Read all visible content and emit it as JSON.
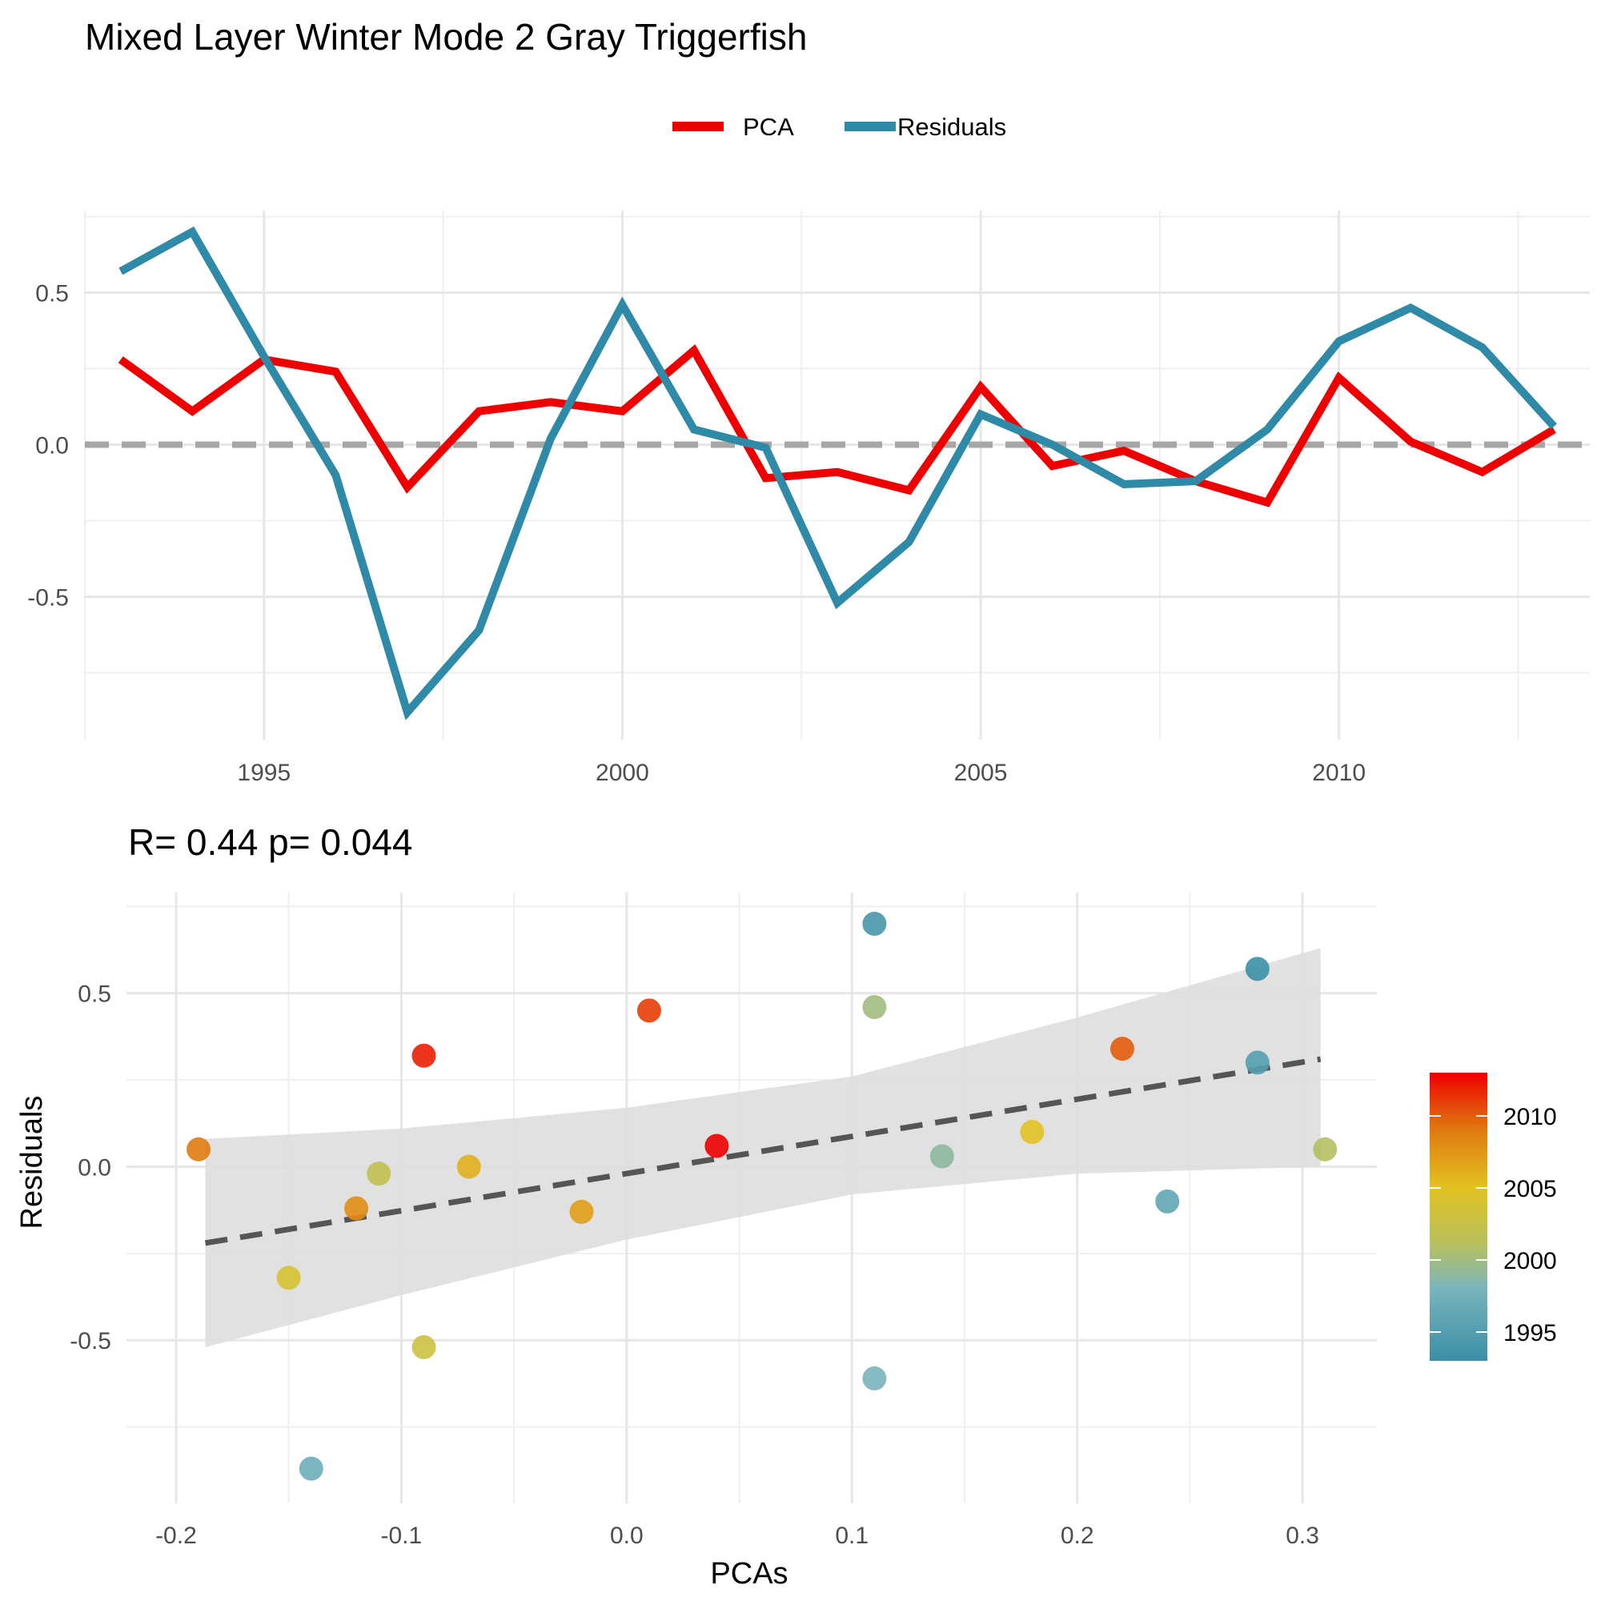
{
  "title": "Mixed Layer Winter Mode 2 Gray Triggerfish",
  "chart_data": [
    {
      "type": "line",
      "legend": {
        "position": "top",
        "entries": [
          {
            "name": "PCA",
            "color": "#ee0000"
          },
          {
            "name": "Residuals",
            "color": "#2e8aa6"
          }
        ]
      },
      "x": [
        1993,
        1994,
        1995,
        1996,
        1997,
        1998,
        1999,
        2000,
        2001,
        2002,
        2003,
        2004,
        2005,
        2006,
        2007,
        2008,
        2009,
        2010,
        2011,
        2012,
        2013
      ],
      "series": [
        {
          "name": "PCA",
          "color": "#ee0000",
          "values": [
            0.28,
            0.11,
            0.28,
            0.24,
            -0.14,
            0.11,
            0.14,
            0.11,
            0.31,
            -0.11,
            -0.09,
            -0.15,
            0.19,
            -0.07,
            -0.02,
            -0.12,
            -0.19,
            0.22,
            0.01,
            -0.09,
            0.05
          ]
        },
        {
          "name": "Residuals",
          "color": "#2e8aa6",
          "values": [
            0.57,
            0.7,
            0.29,
            -0.1,
            -0.88,
            -0.61,
            0.02,
            0.46,
            0.05,
            -0.01,
            -0.52,
            -0.32,
            0.1,
            0.0,
            -0.13,
            -0.12,
            0.05,
            0.34,
            0.45,
            0.32,
            0.06
          ]
        }
      ],
      "reference_line": {
        "y": 0,
        "style": "dashed",
        "color": "#a6a6a6"
      },
      "xticks": [
        1995,
        2000,
        2005,
        2010
      ],
      "yticks": [
        -0.5,
        0.0,
        0.5
      ],
      "xtick_labels": [
        "1995",
        "2000",
        "2005",
        "2010"
      ],
      "ytick_labels": [
        "-0.5",
        "0.0",
        "0.5"
      ],
      "xlim": [
        1992.5,
        2013.5
      ],
      "ylim": [
        -0.97,
        0.77
      ],
      "grid": true
    },
    {
      "type": "scatter",
      "subtitle": "R= 0.44  p= 0.044",
      "xlabel": "PCAs",
      "ylabel": "Residuals",
      "xticks": [
        -0.2,
        -0.1,
        0.0,
        0.1,
        0.2,
        0.3
      ],
      "yticks": [
        -0.5,
        0.0,
        0.5
      ],
      "xtick_labels": [
        "-0.2",
        "-0.1",
        "0.0",
        "0.1",
        "0.2",
        "0.3"
      ],
      "ytick_labels": [
        "-0.5",
        "0.0",
        "0.5"
      ],
      "xlim": [
        -0.222,
        0.333
      ],
      "ylim": [
        -0.97,
        0.79
      ],
      "grid": true,
      "points": [
        {
          "x": 0.28,
          "y": 0.57,
          "year": 1993
        },
        {
          "x": 0.11,
          "y": 0.7,
          "year": 1994
        },
        {
          "x": 0.28,
          "y": 0.3,
          "year": 1995
        },
        {
          "x": 0.24,
          "y": -0.1,
          "year": 1996
        },
        {
          "x": -0.14,
          "y": -0.87,
          "year": 1997
        },
        {
          "x": 0.11,
          "y": -0.61,
          "year": 1998
        },
        {
          "x": 0.14,
          "y": 0.03,
          "year": 1999
        },
        {
          "x": 0.11,
          "y": 0.46,
          "year": 2000
        },
        {
          "x": 0.31,
          "y": 0.05,
          "year": 2001
        },
        {
          "x": -0.11,
          "y": -0.02,
          "year": 2002
        },
        {
          "x": -0.09,
          "y": -0.52,
          "year": 2003
        },
        {
          "x": -0.15,
          "y": -0.32,
          "year": 2004
        },
        {
          "x": 0.18,
          "y": 0.1,
          "year": 2005
        },
        {
          "x": -0.07,
          "y": 0.0,
          "year": 2006
        },
        {
          "x": -0.02,
          "y": -0.13,
          "year": 2007
        },
        {
          "x": -0.12,
          "y": -0.12,
          "year": 2008
        },
        {
          "x": -0.19,
          "y": 0.05,
          "year": 2009
        },
        {
          "x": 0.22,
          "y": 0.34,
          "year": 2010
        },
        {
          "x": 0.01,
          "y": 0.45,
          "year": 2011
        },
        {
          "x": -0.09,
          "y": 0.32,
          "year": 2012
        },
        {
          "x": 0.04,
          "y": 0.06,
          "year": 2013
        }
      ],
      "fit_line": {
        "x": [
          -0.187,
          0.308
        ],
        "y": [
          -0.22,
          0.31
        ],
        "style": "dashed",
        "color": "#555555"
      },
      "confidence_band": {
        "x": [
          -0.187,
          -0.1,
          0.0,
          0.1,
          0.2,
          0.308
        ],
        "upper": [
          0.08,
          0.11,
          0.17,
          0.26,
          0.43,
          0.63
        ],
        "lower": [
          -0.52,
          -0.37,
          -0.21,
          -0.08,
          -0.02,
          0.0
        ],
        "color": "#dedede"
      },
      "colorbar": {
        "range": [
          1993,
          2013
        ],
        "ticks": [
          1995,
          2000,
          2005,
          2010
        ],
        "tick_labels": [
          "1995",
          "2000",
          "2005",
          "2010"
        ],
        "stops": [
          {
            "value": 1993,
            "color": "#3b8fa6"
          },
          {
            "value": 1998,
            "color": "#79b4bd"
          },
          {
            "value": 2001,
            "color": "#b5c060"
          },
          {
            "value": 2005,
            "color": "#e2c221"
          },
          {
            "value": 2009,
            "color": "#e07a0f"
          },
          {
            "value": 2013,
            "color": "#ee0000"
          }
        ]
      }
    }
  ]
}
